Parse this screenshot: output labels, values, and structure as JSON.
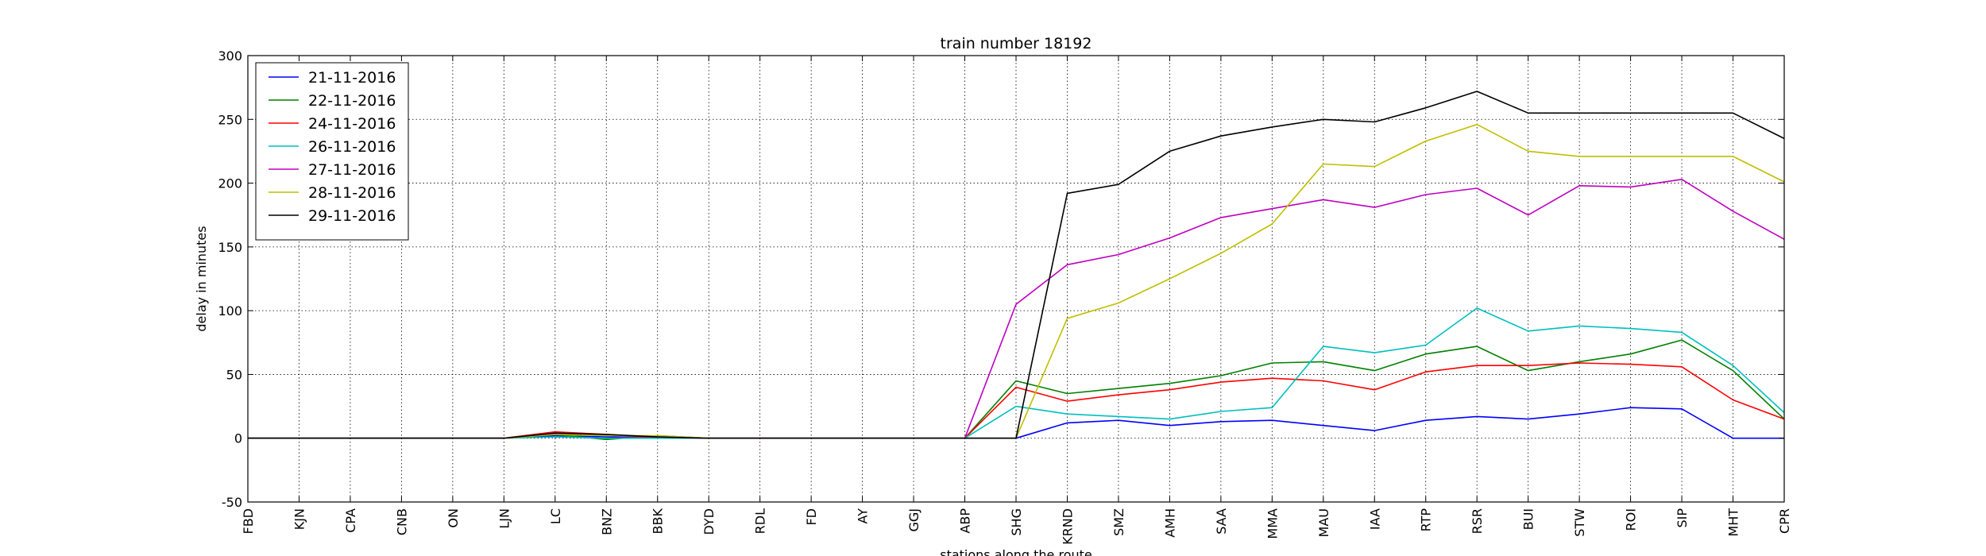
{
  "chart_data": {
    "type": "line",
    "title": "train number 18192",
    "xlabel": "stations along the route",
    "ylabel": "delay in minutes",
    "ylim": [
      -50,
      300
    ],
    "yticks": [
      -50,
      0,
      50,
      100,
      150,
      200,
      250,
      300
    ],
    "grid": true,
    "legend_position": "top-left",
    "categories": [
      "FBD",
      "KJN",
      "CPA",
      "CNB",
      "ON",
      "LJN",
      "LC",
      "BNZ",
      "BBK",
      "DYD",
      "RDL",
      "FD",
      "AY",
      "GGJ",
      "ABP",
      "SHG",
      "KRND",
      "SMZ",
      "AMH",
      "SAA",
      "MMA",
      "MAU",
      "IAA",
      "RTP",
      "RSR",
      "BUI",
      "STW",
      "ROI",
      "SIP",
      "MHT",
      "CPR"
    ],
    "series": [
      {
        "name": "21-11-2016",
        "color": "#0000ff",
        "values": [
          0,
          0,
          0,
          0,
          0,
          0,
          2,
          1,
          0,
          0,
          0,
          0,
          0,
          0,
          0,
          0,
          12,
          14,
          10,
          13,
          14,
          10,
          6,
          14,
          17,
          15,
          19,
          24,
          23,
          0,
          0
        ]
      },
      {
        "name": "22-11-2016",
        "color": "#008000",
        "values": [
          0,
          0,
          0,
          0,
          0,
          0,
          3,
          -1,
          2,
          0,
          0,
          0,
          0,
          0,
          0,
          45,
          35,
          39,
          43,
          49,
          59,
          60,
          53,
          66,
          72,
          53,
          60,
          66,
          77,
          53,
          15
        ]
      },
      {
        "name": "24-11-2016",
        "color": "#ff0000",
        "values": [
          0,
          0,
          0,
          0,
          0,
          0,
          5,
          3,
          0,
          0,
          0,
          0,
          0,
          0,
          0,
          40,
          29,
          34,
          38,
          44,
          47,
          45,
          38,
          52,
          57,
          57,
          59,
          58,
          56,
          30,
          15
        ]
      },
      {
        "name": "26-11-2016",
        "color": "#00bfbf",
        "values": [
          0,
          0,
          0,
          0,
          0,
          0,
          1,
          0,
          0,
          0,
          0,
          0,
          0,
          0,
          0,
          25,
          19,
          17,
          15,
          21,
          24,
          72,
          67,
          73,
          102,
          84,
          88,
          86,
          83,
          57,
          20
        ]
      },
      {
        "name": "27-11-2016",
        "color": "#bf00bf",
        "values": [
          0,
          0,
          0,
          0,
          0,
          0,
          4,
          2,
          1,
          0,
          0,
          0,
          0,
          0,
          0,
          105,
          136,
          144,
          157,
          173,
          180,
          187,
          181,
          191,
          196,
          175,
          198,
          197,
          203,
          178,
          156
        ]
      },
      {
        "name": "28-11-2016",
        "color": "#bfbf00",
        "values": [
          0,
          0,
          0,
          0,
          0,
          0,
          3,
          2,
          2,
          0,
          0,
          0,
          0,
          0,
          0,
          0,
          94,
          106,
          125,
          145,
          168,
          215,
          213,
          233,
          246,
          225,
          221,
          221,
          221,
          221,
          201
        ]
      },
      {
        "name": "29-11-2016",
        "color": "#000000",
        "values": [
          0,
          0,
          0,
          0,
          0,
          0,
          4,
          3,
          1,
          0,
          0,
          0,
          0,
          0,
          0,
          0,
          192,
          199,
          225,
          237,
          244,
          250,
          248,
          259,
          272,
          255,
          255,
          255,
          255,
          255,
          235
        ]
      }
    ]
  }
}
